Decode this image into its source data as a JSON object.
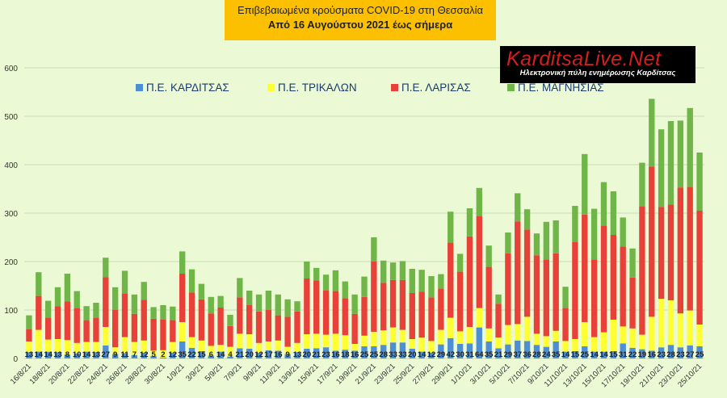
{
  "header": {
    "line1": "Επιβεβαιωμένα κρούσματα COVID-19 στη Θεσσαλία",
    "line2": "Από 16 Αυγούστου 2021 έως σήμερα"
  },
  "logo": {
    "name": "KarditsaLive.Net",
    "tagline": "Ηλεκτρονική πύλη ενημέρωσης Καρδίτσας"
  },
  "chart_data": {
    "type": "bar",
    "stacked": true,
    "ylim": [
      0,
      650
    ],
    "yticks": [
      0,
      100,
      200,
      300,
      400,
      500,
      600
    ],
    "grid": true,
    "legend_position": "top",
    "x_tick_labels": [
      "16/8/21",
      "18/8/21",
      "20/8/21",
      "22/8/21",
      "24/8/21",
      "26/8/21",
      "28/8/21",
      "30/8/21",
      "1/9/21",
      "3/9/21",
      "5/9/21",
      "7/9/21",
      "9/9/21",
      "11/9/21",
      "13/9/21",
      "15/9/21",
      "17/9/21",
      "19/9/21",
      "21/9/21",
      "23/9/21",
      "25/9/21",
      "27/9/21",
      "29/9/21",
      "1/10/21",
      "3/10/21",
      "5/10/21",
      "7/10/21",
      "9/10/21",
      "11/10/21",
      "13/10/21",
      "15/10/21",
      "17/10/21",
      "19/10/21",
      "21/10/21",
      "23/10/21",
      "25/10/21"
    ],
    "categories": [
      "16/8/21",
      "17/8/21",
      "18/8/21",
      "19/8/21",
      "20/8/21",
      "21/8/21",
      "22/8/21",
      "23/8/21",
      "24/8/21",
      "25/8/21",
      "26/8/21",
      "27/8/21",
      "28/8/21",
      "29/8/21",
      "30/8/21",
      "31/8/21",
      "1/9/21",
      "2/9/21",
      "3/9/21",
      "4/9/21",
      "5/9/21",
      "6/9/21",
      "7/9/21",
      "8/9/21",
      "9/9/21",
      "10/9/21",
      "11/9/21",
      "12/9/21",
      "13/9/21",
      "14/9/21",
      "15/9/21",
      "16/9/21",
      "17/9/21",
      "18/9/21",
      "19/9/21",
      "20/9/21",
      "21/9/21",
      "22/9/21",
      "23/9/21",
      "24/9/21",
      "25/9/21",
      "26/9/21",
      "27/9/21",
      "28/9/21",
      "29/9/21",
      "30/9/21",
      "1/10/21",
      "2/10/21",
      "3/10/21",
      "4/10/21",
      "5/10/21",
      "6/10/21",
      "7/10/21",
      "8/10/21",
      "9/10/21",
      "10/10/21",
      "11/10/21",
      "12/10/21",
      "13/10/21",
      "14/10/21",
      "15/10/21",
      "16/10/21",
      "17/10/21",
      "18/10/21",
      "19/10/21",
      "20/10/21",
      "21/10/21",
      "22/10/21",
      "23/10/21",
      "24/10/21",
      "25/10/21"
    ],
    "series": [
      {
        "name": "Π.Ε. ΚΑΡΔΙΤΣΑΣ",
        "color": "#4e8fd3",
        "values": [
          13,
          14,
          14,
          13,
          8,
          10,
          14,
          13,
          27,
          9,
          11,
          7,
          12,
          5,
          2,
          12,
          35,
          22,
          15,
          6,
          14,
          4,
          21,
          20,
          12,
          17,
          16,
          9,
          13,
          20,
          21,
          23,
          16,
          18,
          16,
          25,
          25,
          28,
          33,
          33,
          20,
          14,
          12,
          29,
          42,
          30,
          31,
          64,
          35,
          21,
          29,
          37,
          36,
          28,
          24,
          35,
          14,
          15,
          25,
          14,
          14,
          15,
          31,
          22,
          19,
          16,
          23,
          28,
          23,
          27,
          25
        ]
      },
      {
        "name": "Π.Ε. ΤΡΙΚΑΛΩΝ",
        "color": "#ffff33",
        "values": [
          22,
          45,
          25,
          27,
          30,
          22,
          20,
          21,
          38,
          14,
          33,
          27,
          25,
          11,
          15,
          22,
          40,
          22,
          22,
          20,
          14,
          20,
          30,
          30,
          20,
          18,
          21,
          15,
          19,
          30,
          30,
          26,
          35,
          30,
          14,
          22,
          30,
          30,
          31,
          26,
          20,
          29,
          24,
          30,
          42,
          26,
          34,
          40,
          27,
          22,
          40,
          34,
          50,
          23,
          22,
          22,
          22,
          25,
          50,
          30,
          40,
          65,
          35,
          40,
          30,
          70,
          100,
          92,
          70,
          72,
          45
        ]
      },
      {
        "name": "Π.Ε. ΛΑΡΙΣΑΣ",
        "color": "#e8413a",
        "values": [
          25,
          70,
          45,
          68,
          80,
          72,
          45,
          50,
          103,
          77,
          90,
          58,
          84,
          66,
          63,
          45,
          100,
          92,
          85,
          67,
          77,
          43,
          75,
          60,
          65,
          65,
          52,
          62,
          65,
          115,
          110,
          91,
          88,
          76,
          62,
          80,
          145,
          98,
          98,
          103,
          95,
          95,
          90,
          85,
          155,
          123,
          187,
          190,
          127,
          70,
          148,
          212,
          180,
          162,
          158,
          160,
          68,
          200,
          222,
          160,
          220,
          175,
          165,
          105,
          265,
          310,
          190,
          198,
          260,
          255,
          235
        ]
      },
      {
        "name": "Π.Ε. ΜΑΓΝΗΣΙΑΣ",
        "color": "#6fb548",
        "values": [
          29,
          49,
          35,
          39,
          57,
          35,
          29,
          31,
          40,
          47,
          47,
          40,
          37,
          24,
          30,
          28,
          46,
          48,
          32,
          34,
          24,
          23,
          40,
          30,
          35,
          40,
          43,
          36,
          21,
          35,
          26,
          33,
          43,
          35,
          40,
          42,
          50,
          46,
          36,
          39,
          50,
          45,
          44,
          30,
          64,
          37,
          58,
          58,
          44,
          19,
          43,
          58,
          42,
          45,
          78,
          68,
          44,
          75,
          125,
          105,
          90,
          90,
          60,
          60,
          90,
          140,
          160,
          172,
          138,
          163,
          120
        ]
      }
    ]
  }
}
